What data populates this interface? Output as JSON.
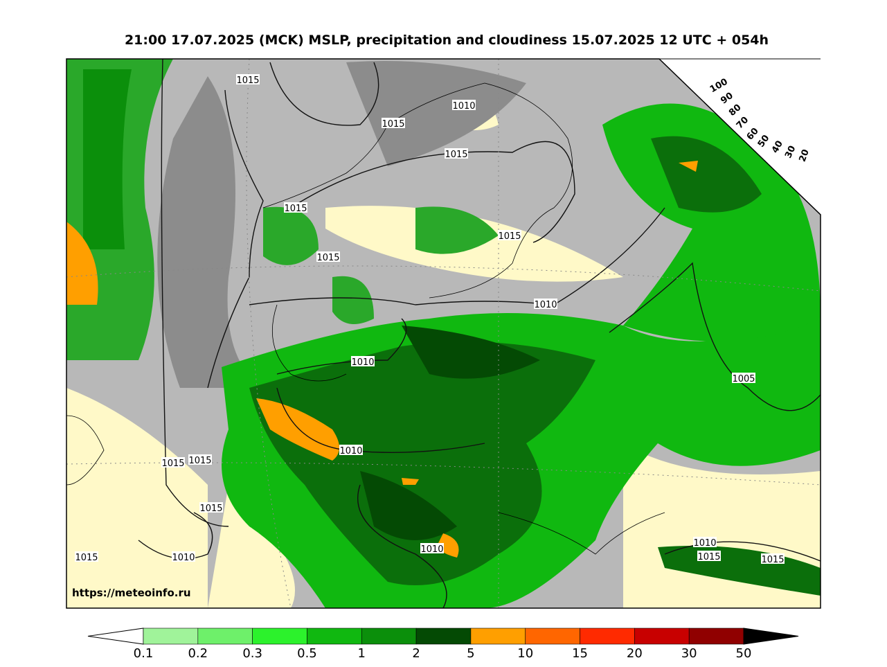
{
  "header": {
    "title": "21:00 17.07.2025 (MCK) MSLP, precipitation and cloudiness 15.07.2025 12 UTC + 054h"
  },
  "map": {
    "isobar_labels": [
      1015,
      1010,
      1015,
      1015,
      1015,
      1015,
      1015,
      1010,
      1010,
      1005,
      1010,
      1015,
      1015,
      1015,
      1010,
      1015,
      1015,
      1015,
      1010,
      1010
    ],
    "url": "https://meteoinfo.ru"
  },
  "cloudiness_scale": {
    "labels": [
      100,
      90,
      80,
      70,
      60,
      50,
      40,
      30,
      20
    ]
  },
  "colorbar": {
    "labels": [
      0.1,
      0.2,
      0.3,
      0.5,
      1,
      2,
      5,
      10,
      15,
      20,
      30,
      50
    ],
    "colors": [
      "#a0f39a",
      "#6ef06a",
      "#2cf22c",
      "#10b810",
      "#0b8f0b",
      "#044a04",
      "#ff9f00",
      "#ff6600",
      "#ff2a00",
      "#c80000",
      "#900000"
    ]
  }
}
